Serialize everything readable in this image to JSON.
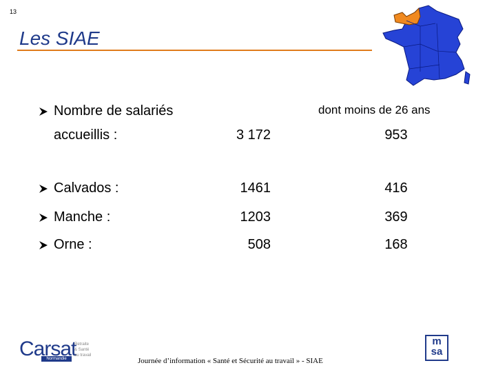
{
  "page_number": "13",
  "title": "Les SIAE",
  "table": {
    "column_header": "dont moins de 26 ans",
    "rows": [
      {
        "label": [
          "Nombre de salariés",
          "accueillis :"
        ],
        "total": "3 172",
        "under_26": "953"
      },
      {
        "label": [
          "Calvados :"
        ],
        "total": "1461",
        "under_26": "416"
      },
      {
        "label": [
          "Manche :"
        ],
        "total": "1203",
        "under_26": "369"
      },
      {
        "label": [
          "Orne :"
        ],
        "total": "508",
        "under_26": "168"
      }
    ]
  },
  "footer": "Journée d’information « Santé et Sécurité au travail » - SIAE",
  "logo_left": {
    "name": "Carsat",
    "tagline": [
      "Retraite",
      "& Santé",
      "au travail"
    ],
    "region": "Normandie"
  },
  "logo_right": {
    "name": [
      "m",
      "sa"
    ]
  }
}
